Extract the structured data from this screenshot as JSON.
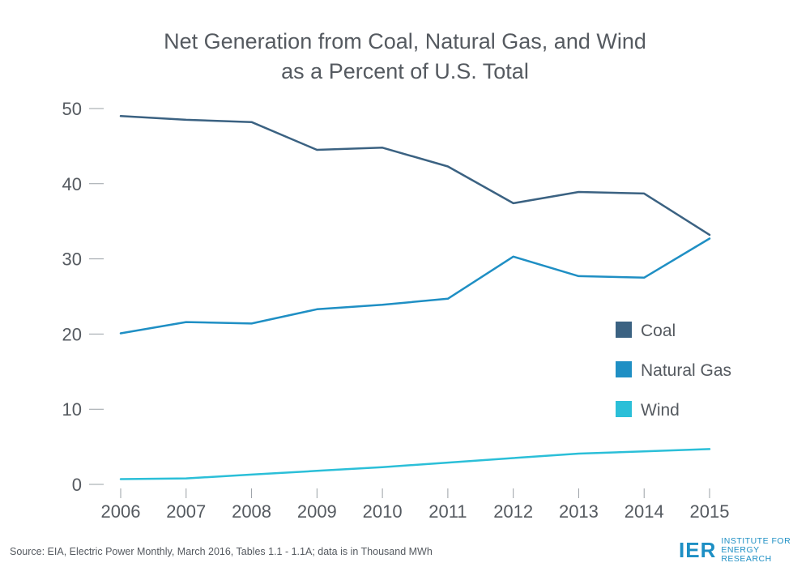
{
  "chart_data": {
    "type": "line",
    "title_line1": "Net Generation from Coal, Natural Gas, and Wind",
    "title_line2": "as a Percent of U.S. Total",
    "x": [
      "2006",
      "2007",
      "2008",
      "2009",
      "2010",
      "2011",
      "2012",
      "2013",
      "2014",
      "2015"
    ],
    "ylim": [
      0,
      50
    ],
    "yticks": [
      0,
      10,
      20,
      30,
      40,
      50
    ],
    "grid": false,
    "legend_position": "right",
    "series": [
      {
        "name": "Coal",
        "color": "#3b6282",
        "values": [
          49.0,
          48.5,
          48.2,
          44.5,
          44.8,
          42.3,
          37.4,
          38.9,
          38.7,
          33.2
        ]
      },
      {
        "name": "Natural Gas",
        "color": "#1f8fc4",
        "values": [
          20.1,
          21.6,
          21.4,
          23.3,
          23.9,
          24.7,
          30.3,
          27.7,
          27.5,
          32.7
        ]
      },
      {
        "name": "Wind",
        "color": "#2bbfd8",
        "values": [
          0.7,
          0.8,
          1.3,
          1.8,
          2.3,
          2.9,
          3.5,
          4.1,
          4.4,
          4.7
        ]
      }
    ]
  },
  "footer": {
    "source": "Source: EIA, Electric Power Monthly, March 2016, Tables 1.1 - 1.1A; data is in Thousand MWh"
  },
  "logo": {
    "mark": "IER",
    "line1": "INSTITUTE FOR",
    "line2": "ENERGY RESEARCH",
    "color": "#1d8fc4"
  }
}
